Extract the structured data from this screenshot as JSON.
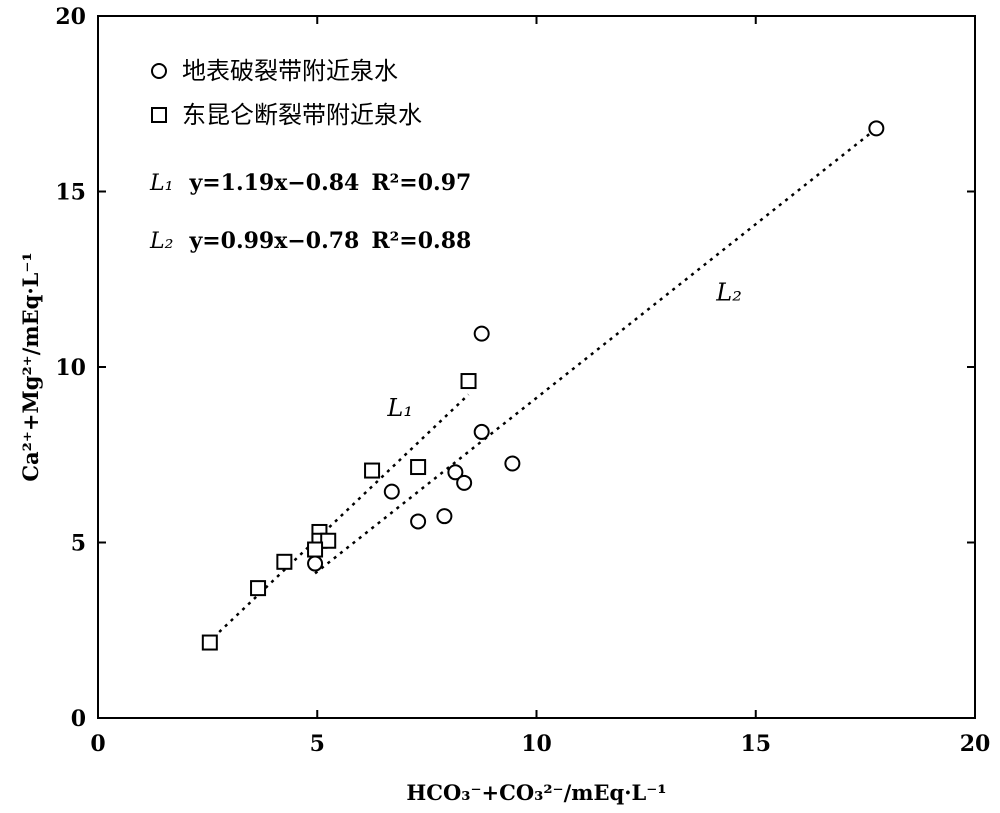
{
  "chart_data": {
    "type": "scatter",
    "xlabel": "HCO₃⁻+CO₃²⁻/mEq·L⁻¹",
    "ylabel": "Ca²⁺+Mg²⁺/mEq·L⁻¹",
    "xlim": [
      0,
      20
    ],
    "ylim": [
      0,
      20
    ],
    "xticks": [
      "0",
      "5",
      "10",
      "15",
      "20"
    ],
    "yticks": [
      "0",
      "5",
      "10",
      "15",
      "20"
    ],
    "grid": false,
    "legend_position": "top-left",
    "series": [
      {
        "name": "地表破裂带附近泉水",
        "marker": "circle",
        "points": [
          [
            17.75,
            16.8
          ],
          [
            8.75,
            10.95
          ],
          [
            8.75,
            8.15
          ],
          [
            9.45,
            7.25
          ],
          [
            8.15,
            7.0
          ],
          [
            8.35,
            6.7
          ],
          [
            6.7,
            6.45
          ],
          [
            7.9,
            5.75
          ],
          [
            7.3,
            5.6
          ],
          [
            4.95,
            4.4
          ]
        ]
      },
      {
        "name": "东昆仑断裂带附近泉水",
        "marker": "square",
        "points": [
          [
            8.45,
            9.6
          ],
          [
            6.25,
            7.05
          ],
          [
            7.3,
            7.15
          ],
          [
            5.05,
            5.3
          ],
          [
            5.05,
            5.05
          ],
          [
            5.25,
            5.05
          ],
          [
            4.95,
            4.8
          ],
          [
            4.25,
            4.45
          ],
          [
            3.65,
            3.7
          ],
          [
            2.55,
            2.15
          ]
        ]
      }
    ],
    "trend_lines": [
      {
        "label": "L₁",
        "equation": "y=1.19x−0.84",
        "r2": "R²=0.97",
        "x_range": [
          2.5,
          8.45
        ]
      },
      {
        "label": "L₂",
        "equation": "y=0.99x−0.78",
        "r2": "R²=0.88",
        "x_range": [
          4.95,
          17.75
        ]
      }
    ]
  }
}
